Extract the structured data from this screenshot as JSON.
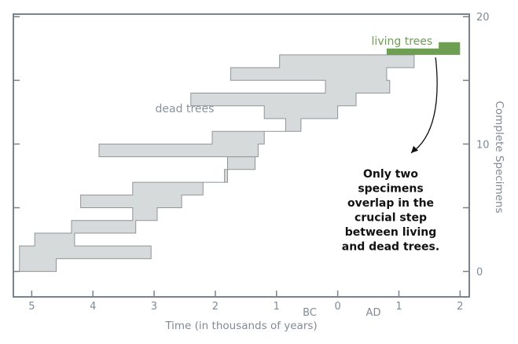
{
  "chart_data": {
    "type": "area",
    "xlabel": "Time (in thousands of years)",
    "ylabel": "Complete Specimens",
    "x_ticks": [
      {
        "value": 5,
        "label": "5"
      },
      {
        "value": 4,
        "label": "4"
      },
      {
        "value": 3,
        "label": "3"
      },
      {
        "value": 2,
        "label": "2"
      },
      {
        "value": 1,
        "label": "1"
      },
      {
        "value": 0,
        "label": "0"
      },
      {
        "value": -1,
        "label": "1"
      },
      {
        "value": -2,
        "label": "2"
      }
    ],
    "y_ticks": [
      {
        "value": 0,
        "label": "0"
      },
      {
        "value": 10,
        "label": "10"
      },
      {
        "value": 20,
        "label": "20"
      }
    ],
    "era_labels": {
      "bc": "BC",
      "ad": "AD"
    },
    "xlim": [
      5.3,
      -2.15
    ],
    "ylim": [
      -2,
      20.2
    ],
    "series": [
      {
        "name": "dead trees",
        "color": "#d6dadb",
        "edge_color": "#8e9499",
        "polygon": [
          [
            5.2,
            0
          ],
          [
            4.6,
            0
          ],
          [
            4.6,
            1
          ],
          [
            3.05,
            1
          ],
          [
            3.05,
            2
          ],
          [
            4.3,
            2
          ],
          [
            4.3,
            3
          ],
          [
            3.3,
            3
          ],
          [
            3.3,
            4
          ],
          [
            2.95,
            4
          ],
          [
            2.95,
            5
          ],
          [
            2.55,
            5
          ],
          [
            2.55,
            6
          ],
          [
            2.2,
            6
          ],
          [
            2.2,
            7
          ],
          [
            1.8,
            7
          ],
          [
            1.8,
            9
          ],
          [
            1.3,
            9
          ],
          [
            1.3,
            10
          ],
          [
            1.2,
            10
          ],
          [
            1.2,
            11
          ],
          [
            0.6,
            11
          ],
          [
            0.6,
            12
          ],
          [
            0.0,
            12
          ],
          [
            0.0,
            13
          ],
          [
            -0.3,
            13
          ],
          [
            -0.3,
            14
          ],
          [
            -0.85,
            14
          ],
          [
            -0.85,
            15
          ],
          [
            -0.8,
            15
          ],
          [
            -0.8,
            16
          ],
          [
            -1.25,
            16
          ],
          [
            -1.25,
            17
          ],
          [
            0.95,
            17
          ],
          [
            0.95,
            16
          ],
          [
            1.75,
            16
          ],
          [
            1.75,
            15
          ],
          [
            0.2,
            15
          ],
          [
            0.2,
            14
          ],
          [
            2.4,
            14
          ],
          [
            2.4,
            13
          ],
          [
            1.2,
            13
          ],
          [
            1.2,
            12
          ],
          [
            0.85,
            12
          ],
          [
            0.85,
            11
          ],
          [
            2.05,
            11
          ],
          [
            2.05,
            10
          ],
          [
            3.9,
            10
          ],
          [
            3.9,
            9
          ],
          [
            1.35,
            9
          ],
          [
            1.35,
            8
          ],
          [
            1.85,
            8
          ],
          [
            1.85,
            7
          ],
          [
            3.35,
            7
          ],
          [
            3.35,
            6
          ],
          [
            4.2,
            6
          ],
          [
            4.2,
            5
          ],
          [
            3.35,
            5
          ],
          [
            3.35,
            4
          ],
          [
            4.35,
            4
          ],
          [
            4.35,
            3
          ],
          [
            4.95,
            3
          ],
          [
            4.95,
            2
          ],
          [
            5.2,
            2
          ],
          [
            5.2,
            1
          ],
          [
            5.2,
            0
          ]
        ]
      },
      {
        "name": "living trees",
        "color": "#6e9e52",
        "polygon": [
          [
            -0.8,
            17
          ],
          [
            -2.0,
            17
          ],
          [
            -2.0,
            18
          ],
          [
            -1.65,
            18
          ],
          [
            -1.65,
            17.5
          ],
          [
            -0.8,
            17.5
          ],
          [
            -0.8,
            17
          ]
        ]
      }
    ],
    "annotations": [
      {
        "label": "dead trees",
        "at": [
          2.5,
          12.5
        ]
      },
      {
        "label": "living trees",
        "at": [
          -1.05,
          17.8
        ]
      },
      {
        "text_lines": [
          "Only two",
          "specimens",
          "overlap in the",
          "crucial step",
          "between living",
          "and dead trees."
        ],
        "arrow_from": [
          -1.6,
          16.8
        ],
        "arrow_to": [
          -1.2,
          9.3
        ]
      }
    ],
    "grid": false
  }
}
